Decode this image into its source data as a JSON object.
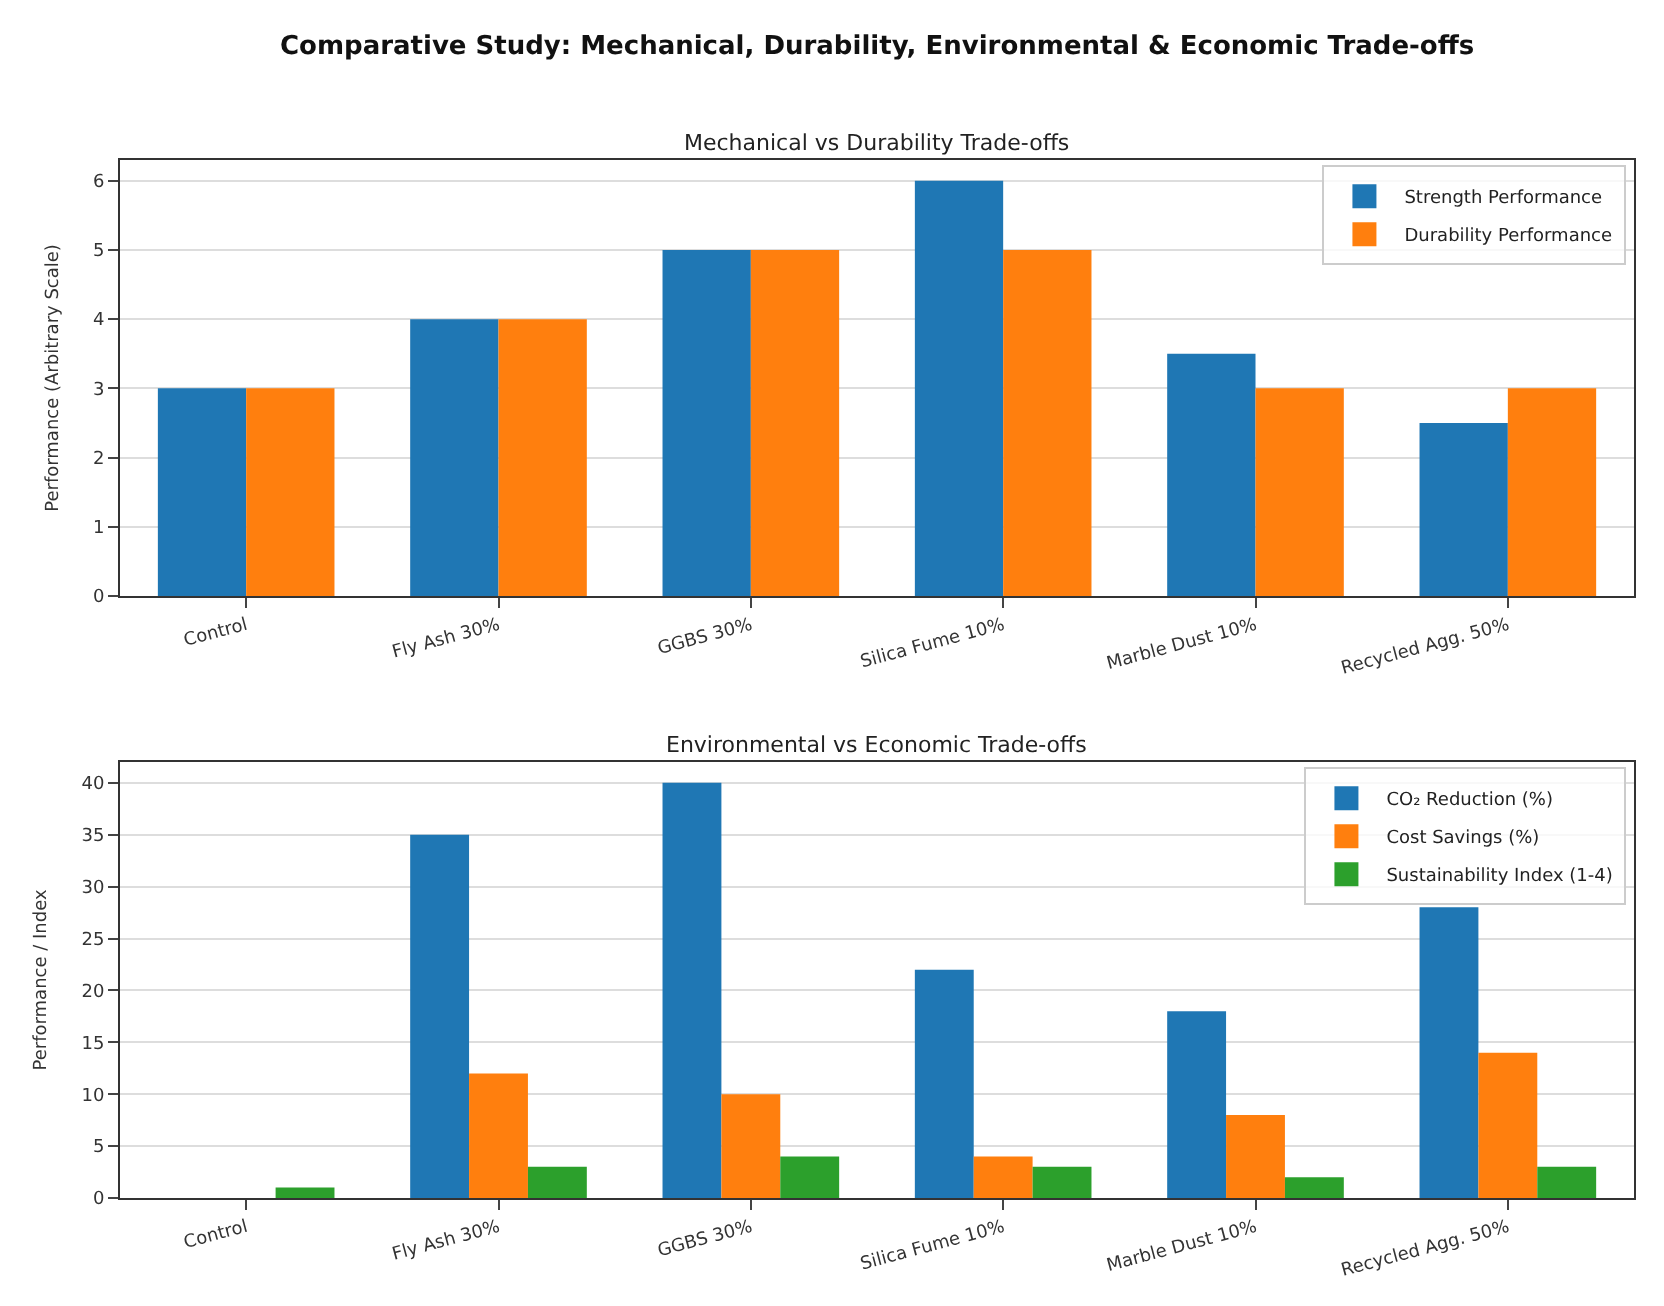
{
  "chart_data": [
    {
      "type": "bar",
      "title": "Mechanical vs Durability Trade-offs",
      "ylabel": "Performance (Arbitrary Scale)",
      "annotations": [
        "Comparative Study: Mechanical, Durability, Environmental & Economic Trade-offs"
      ],
      "categories": [
        "Control",
        "Fly Ash 30%",
        "GGBS 30%",
        "Silica Fume 10%",
        "Marble Dust 10%",
        "Recycled Agg. 50%"
      ],
      "series": [
        {
          "name": "Strength Performance",
          "color": "#1f77b4",
          "values": [
            3,
            4,
            5,
            6,
            3.5,
            2.5
          ]
        },
        {
          "name": "Durability Performance",
          "color": "#ff7f0e",
          "values": [
            3,
            4,
            5,
            5,
            3,
            3
          ]
        }
      ],
      "ylim": [
        0,
        6.3
      ],
      "yticks": [
        0,
        1,
        2,
        3,
        4,
        5,
        6
      ],
      "grid": "y",
      "legend": "top right"
    },
    {
      "type": "bar",
      "title": "Environmental vs Economic Trade-offs",
      "ylabel": "Performance / Index",
      "categories": [
        "Control",
        "Fly Ash 30%",
        "GGBS 30%",
        "Silica Fume 10%",
        "Marble Dust 10%",
        "Recycled Agg. 50%"
      ],
      "series": [
        {
          "name": "CO₂ Reduction (%)",
          "color": "#1f77b4",
          "values": [
            0,
            35,
            40,
            22,
            18,
            28
          ]
        },
        {
          "name": "Cost Savings (%)",
          "color": "#ff7f0e",
          "values": [
            0,
            12,
            10,
            4,
            8,
            14
          ]
        },
        {
          "name": "Sustainability Index (1-4)",
          "color": "#2ca02c",
          "values": [
            1,
            3,
            4,
            3,
            2,
            3
          ]
        }
      ],
      "ylim": [
        0,
        42
      ],
      "yticks": [
        0,
        5,
        10,
        15,
        20,
        25,
        30,
        35,
        40
      ],
      "grid": "y",
      "legend": "top right"
    }
  ]
}
